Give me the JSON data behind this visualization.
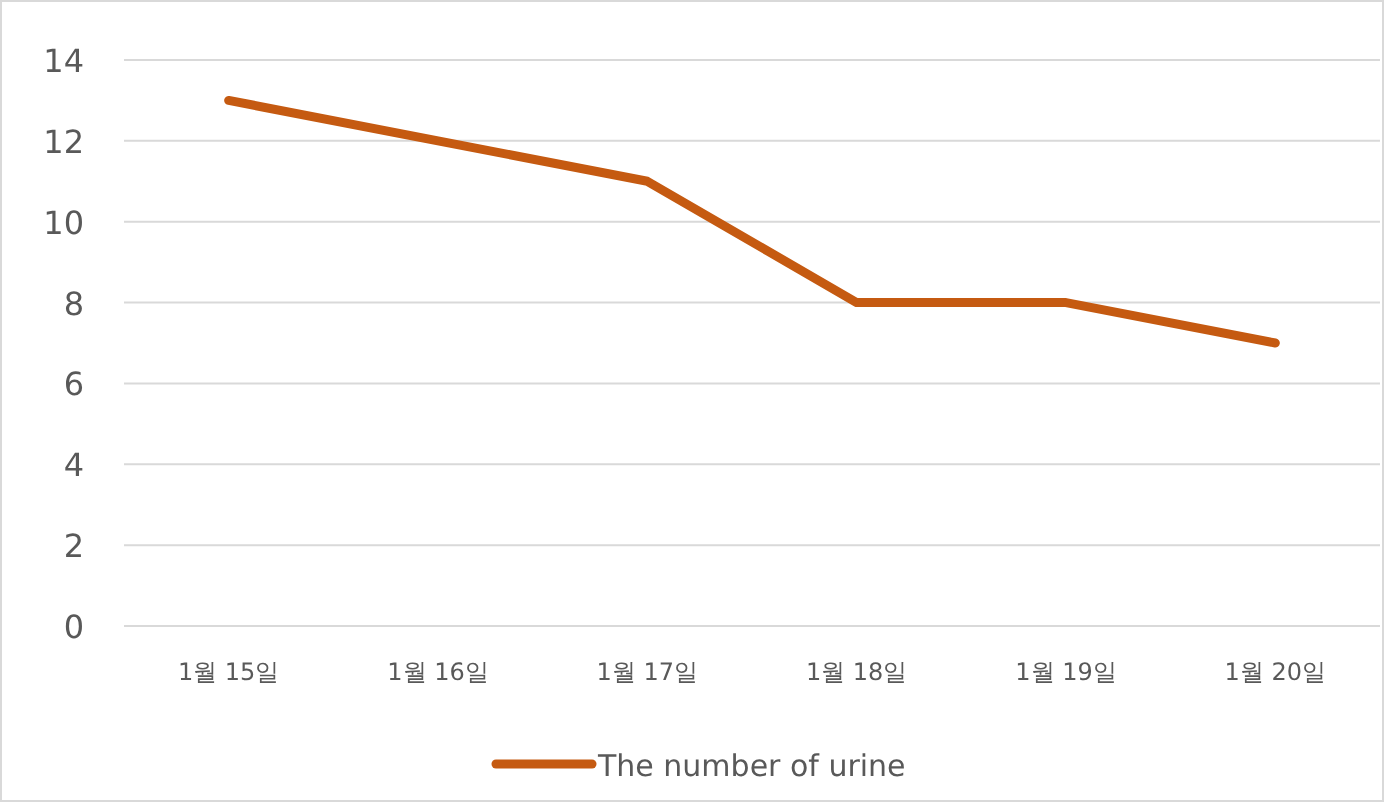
{
  "chart_data": {
    "type": "line",
    "categories": [
      "1월 15일",
      "1월 16일",
      "1월 17일",
      "1월 18일",
      "1월 19일",
      "1월 20일"
    ],
    "series": [
      {
        "name": "The number of urine",
        "color": "#c55a11",
        "values": [
          13,
          12,
          11,
          8,
          8,
          7
        ]
      }
    ],
    "ylim": [
      0,
      14
    ],
    "yticks": [
      0,
      2,
      4,
      6,
      8,
      10,
      12,
      14
    ],
    "grid": "y",
    "legend": "bottom",
    "marker": "none",
    "line_style": "solid"
  }
}
